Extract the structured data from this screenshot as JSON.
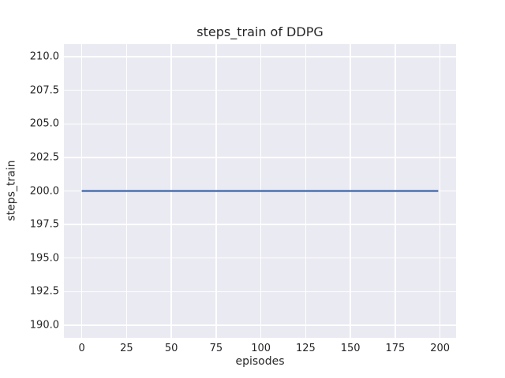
{
  "chart_data": {
    "type": "line",
    "title": "steps_train of DDPG",
    "xlabel": "episodes",
    "ylabel": "steps_train",
    "xlim": [
      -9.95,
      208.95
    ],
    "ylim": [
      189.05,
      210.95
    ],
    "xticks": {
      "values": [
        0,
        25,
        50,
        75,
        100,
        125,
        150,
        175,
        200
      ],
      "labels": [
        "0",
        "25",
        "50",
        "75",
        "100",
        "125",
        "150",
        "175",
        "200"
      ]
    },
    "yticks": {
      "values": [
        190.0,
        192.5,
        195.0,
        197.5,
        200.0,
        202.5,
        205.0,
        207.5,
        210.0
      ],
      "labels": [
        "190.0",
        "192.5",
        "195.0",
        "197.5",
        "200.0",
        "202.5",
        "205.0",
        "207.5",
        "210.0"
      ]
    },
    "grid": true,
    "legend": null,
    "series": [
      {
        "name": "steps_train",
        "color": "#4c72b0",
        "line_width": 2.5,
        "constant_value": 200,
        "x_range": [
          0,
          199
        ],
        "points": [
          [
            0,
            200
          ],
          [
            199,
            200
          ]
        ]
      }
    ],
    "colors": {
      "plot_background": "#eaeaf2",
      "grid_line": "#ffffff",
      "figure_background": "#ffffff",
      "text": "#262626"
    }
  }
}
